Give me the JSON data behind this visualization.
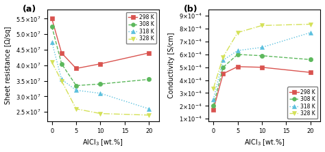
{
  "x": [
    0,
    2,
    5,
    10,
    20
  ],
  "sheet_resistance": {
    "298K": [
      55000000.0,
      44000000.0,
      39000000.0,
      40500000.0,
      44000000.0
    ],
    "308K": [
      52500000.0,
      40500000.0,
      33500000.0,
      34000000.0,
      35500000.0
    ],
    "318K": [
      47500000.0,
      35500000.0,
      32000000.0,
      31000000.0,
      26000000.0
    ],
    "328K": [
      41000000.0,
      35000000.0,
      26000000.0,
      24500000.0,
      24000000.0
    ]
  },
  "conductivity": {
    "298K": [
      0.00017,
      0.00045,
      0.000505,
      0.0005,
      0.00046
    ],
    "308K": [
      0.0002,
      0.0005,
      0.0006,
      0.00059,
      0.00056
    ],
    "318K": [
      0.00025,
      0.000555,
      0.00063,
      0.000655,
      0.00077
    ],
    "328K": [
      0.000335,
      0.00058,
      0.00077,
      0.000825,
      0.000835
    ]
  },
  "colors": {
    "298K": "#d9534f",
    "308K": "#5cb85c",
    "318K": "#5bc0de",
    "328K": "#d4e157"
  },
  "markers": {
    "298K": "s",
    "308K": "o",
    "318K": "^",
    "328K": "v"
  },
  "labels": [
    "298 K",
    "308 K",
    "318 K",
    "328 K"
  ],
  "keys": [
    "298K",
    "308K",
    "318K",
    "328K"
  ],
  "xlabel": "AlCl$_3$ [wt.%]",
  "ylabel_a": "Sheet resistance [Ω/sq]",
  "ylabel_b": "Conductivity [S/cm]",
  "xlim": [
    -1,
    22
  ],
  "xticks": [
    0,
    5,
    10,
    15,
    20
  ],
  "yticks_a": [
    25000000.0,
    30000000.0,
    35000000.0,
    40000000.0,
    45000000.0,
    50000000.0,
    55000000.0
  ],
  "yticks_b": [
    0.0001,
    0.0002,
    0.0003,
    0.0004,
    0.0005,
    0.0006,
    0.0007,
    0.0008,
    0.0009
  ],
  "ylim_a": [
    22000000.0,
    58000000.0
  ],
  "ylim_b": [
    8e-05,
    0.00095
  ],
  "panel_a": "(a)",
  "panel_b": "(b)"
}
